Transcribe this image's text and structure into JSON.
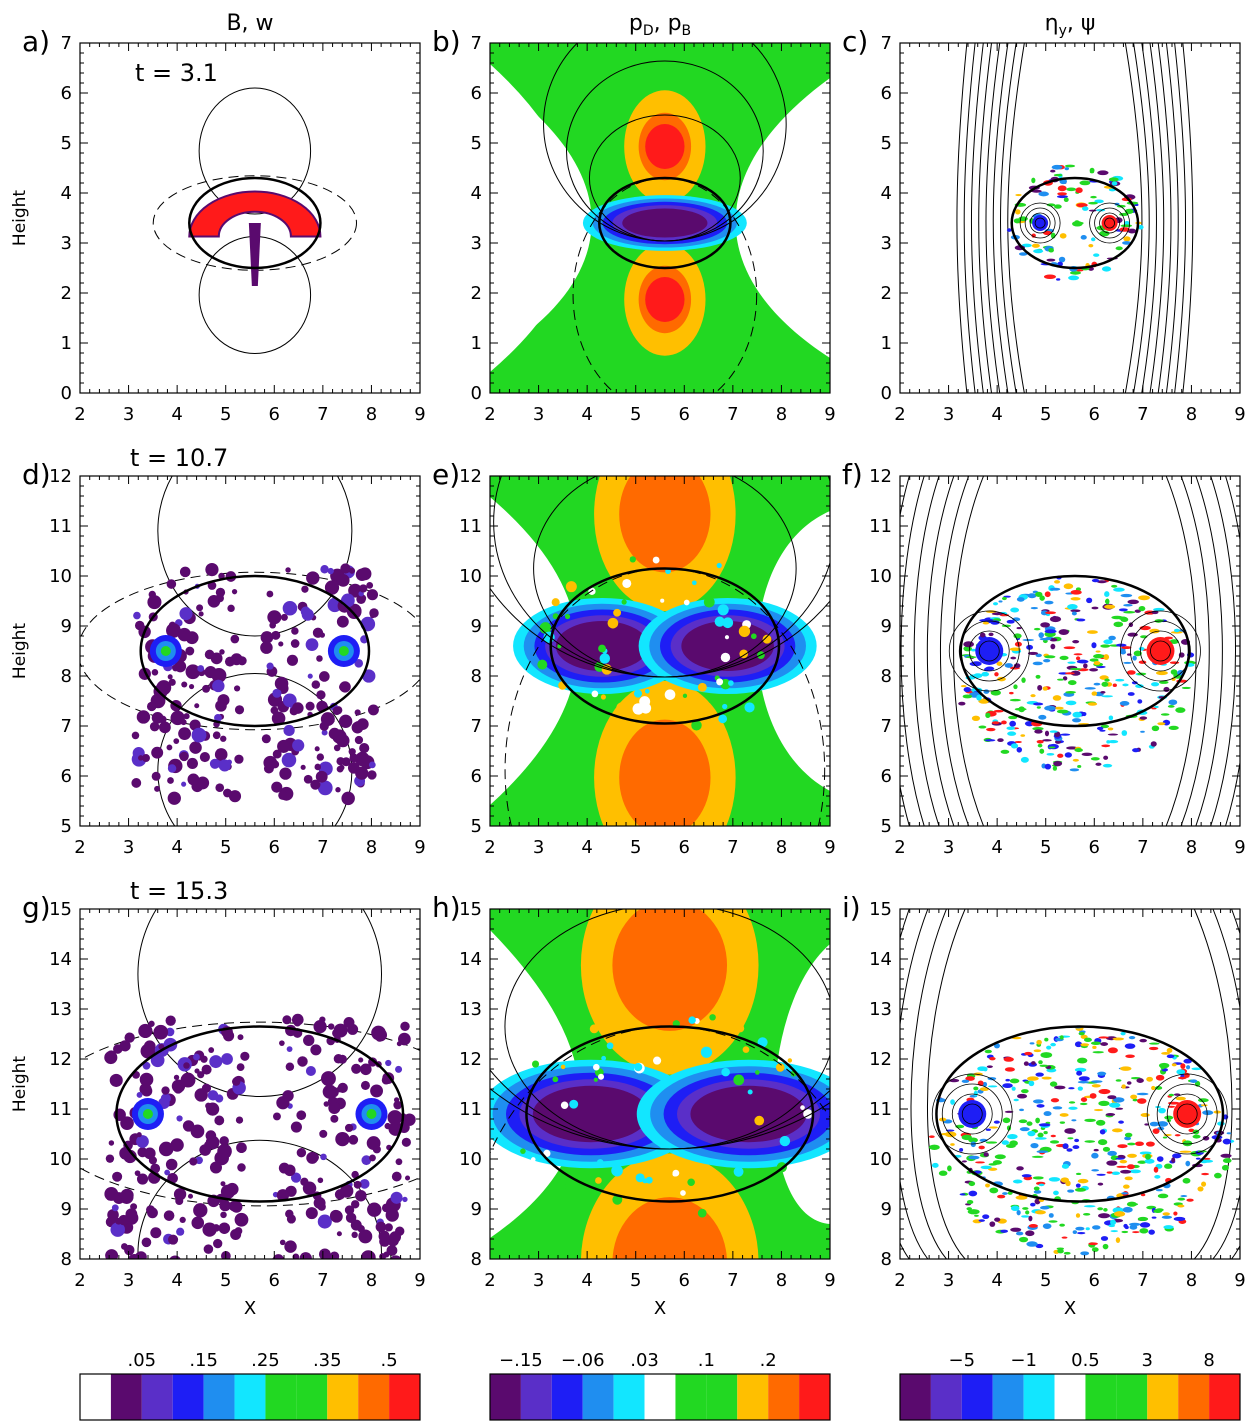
{
  "columns": [
    {
      "title": "B, w"
    },
    {
      "title": "p₀, pʙ"
    },
    {
      "title": "ηᵧ, ψ"
    }
  ],
  "column_title_parts": {
    "col2": [
      "p",
      "D",
      ", p",
      "B"
    ],
    "col3": [
      "η",
      "y",
      ", ψ"
    ]
  },
  "axes": {
    "xlabel": "X",
    "ylabel": "Height"
  },
  "chart_data": [
    {
      "type": "heatmap",
      "panel": "a",
      "time_label": "t = 3.1",
      "xlim": [
        2,
        9
      ],
      "ylim": [
        0,
        7
      ],
      "xticks": [
        2,
        3,
        4,
        5,
        6,
        7,
        8,
        9
      ],
      "yticks": [
        0,
        1,
        2,
        3,
        4,
        5,
        6,
        7
      ],
      "bubble": {
        "cx": 5.6,
        "cy": 3.4,
        "rx": 1.35,
        "ry": 0.9
      },
      "field": "B, w"
    },
    {
      "type": "heatmap",
      "panel": "b",
      "xlim": [
        2,
        9
      ],
      "ylim": [
        0,
        7
      ],
      "xticks": [
        2,
        3,
        4,
        5,
        6,
        7,
        8,
        9
      ],
      "yticks": [
        0,
        1,
        2,
        3,
        4,
        5,
        6,
        7
      ],
      "bubble": {
        "cx": 5.6,
        "cy": 3.4,
        "rx": 1.35,
        "ry": 0.9
      },
      "field": "pD, pB"
    },
    {
      "type": "heatmap",
      "panel": "c",
      "xlim": [
        2,
        9
      ],
      "ylim": [
        0,
        7
      ],
      "xticks": [
        2,
        3,
        4,
        5,
        6,
        7,
        8,
        9
      ],
      "yticks": [
        0,
        1,
        2,
        3,
        4,
        5,
        6,
        7
      ],
      "bubble": {
        "cx": 5.6,
        "cy": 3.4,
        "rx": 1.3,
        "ry": 0.9
      },
      "field": "eta_y, psi"
    },
    {
      "type": "heatmap",
      "panel": "d",
      "time_label": "t = 10.7",
      "xlim": [
        2,
        9
      ],
      "ylim": [
        5,
        12
      ],
      "xticks": [
        2,
        3,
        4,
        5,
        6,
        7,
        8,
        9
      ],
      "yticks": [
        5,
        6,
        7,
        8,
        9,
        10,
        11,
        12
      ],
      "bubble": {
        "cx": 5.6,
        "cy": 8.5,
        "rx": 2.35,
        "ry": 1.5
      },
      "field": "B, w"
    },
    {
      "type": "heatmap",
      "panel": "e",
      "xlim": [
        2,
        9
      ],
      "ylim": [
        5,
        12
      ],
      "xticks": [
        2,
        3,
        4,
        5,
        6,
        7,
        8,
        9
      ],
      "yticks": [
        5,
        6,
        7,
        8,
        9,
        10,
        11,
        12
      ],
      "bubble": {
        "cx": 5.6,
        "cy": 8.6,
        "rx": 2.35,
        "ry": 1.55
      },
      "field": "pD, pB"
    },
    {
      "type": "heatmap",
      "panel": "f",
      "xlim": [
        2,
        9
      ],
      "ylim": [
        5,
        12
      ],
      "xticks": [
        2,
        3,
        4,
        5,
        6,
        7,
        8,
        9
      ],
      "yticks": [
        5,
        6,
        7,
        8,
        9,
        10,
        11,
        12
      ],
      "bubble": {
        "cx": 5.6,
        "cy": 8.5,
        "rx": 2.35,
        "ry": 1.5
      },
      "field": "eta_y, psi"
    },
    {
      "type": "heatmap",
      "panel": "g",
      "time_label": "t = 15.3",
      "xlim": [
        2,
        9
      ],
      "ylim": [
        8,
        15
      ],
      "xticks": [
        2,
        3,
        4,
        5,
        6,
        7,
        8,
        9
      ],
      "yticks": [
        8,
        9,
        10,
        11,
        12,
        13,
        14,
        15
      ],
      "bubble": {
        "cx": 5.7,
        "cy": 10.9,
        "rx": 2.95,
        "ry": 1.75
      },
      "field": "B, w"
    },
    {
      "type": "heatmap",
      "panel": "h",
      "xlim": [
        2,
        9
      ],
      "ylim": [
        8,
        15
      ],
      "xticks": [
        2,
        3,
        4,
        5,
        6,
        7,
        8,
        9
      ],
      "yticks": [
        8,
        9,
        10,
        11,
        12,
        13,
        14,
        15
      ],
      "bubble": {
        "cx": 5.7,
        "cy": 10.9,
        "rx": 2.95,
        "ry": 1.75
      },
      "field": "pD, pB"
    },
    {
      "type": "heatmap",
      "panel": "i",
      "xlim": [
        2,
        9
      ],
      "ylim": [
        8,
        15
      ],
      "xticks": [
        2,
        3,
        4,
        5,
        6,
        7,
        8,
        9
      ],
      "yticks": [
        8,
        9,
        10,
        11,
        12,
        13,
        14,
        15
      ],
      "bubble": {
        "cx": 5.7,
        "cy": 10.9,
        "rx": 2.95,
        "ry": 1.75
      },
      "field": "eta_y, psi"
    }
  ],
  "colorbars": [
    {
      "name": "B, w",
      "labels": [
        ".05",
        ".15",
        ".25",
        ".35",
        ".5"
      ],
      "label_slots": [
        2,
        4,
        6,
        8,
        10
      ],
      "colors": [
        "#ffffff",
        "#5a0a6e",
        "#5a2fc8",
        "#1e1ef5",
        "#1f8ef0",
        "#12e6ff",
        "#22d822",
        "#22d822",
        "#ffbf00",
        "#ff6a00",
        "#ff1a1a"
      ]
    },
    {
      "name": "pD, pB",
      "labels": [
        "−.15",
        "−.06",
        ".03",
        ".1",
        ".2"
      ],
      "label_slots": [
        1,
        3,
        5,
        7,
        9
      ],
      "colors": [
        "#5a0a6e",
        "#5a2fc8",
        "#1e1ef5",
        "#1f8ef0",
        "#12e6ff",
        "#ffffff",
        "#22d822",
        "#22d822",
        "#ffbf00",
        "#ff6a00",
        "#ff1a1a"
      ]
    },
    {
      "name": "eta_y, psi",
      "labels": [
        "−5",
        "−1",
        "0.5",
        "3",
        "8"
      ],
      "label_slots": [
        2,
        4,
        6,
        8,
        10
      ],
      "colors": [
        "#5a0a6e",
        "#5a2fc8",
        "#1e1ef5",
        "#1f8ef0",
        "#12e6ff",
        "#ffffff",
        "#22d822",
        "#22d822",
        "#ffbf00",
        "#ff6a00",
        "#ff1a1a"
      ]
    }
  ],
  "palette": {
    "purple": "#5a0a6e",
    "violet": "#5a2fc8",
    "blue": "#1e1ef5",
    "sky": "#1f8ef0",
    "cyan": "#12e6ff",
    "green": "#22d822",
    "yellow": "#ffbf00",
    "orange": "#ff6a00",
    "red": "#ff1a1a"
  }
}
